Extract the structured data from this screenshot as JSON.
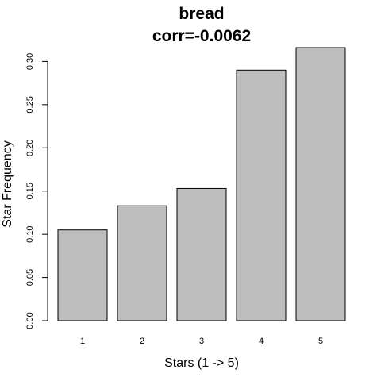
{
  "chart_data": {
    "type": "bar",
    "title": "bread",
    "subtitle": "corr=-0.0062",
    "xlabel": "Stars (1 -> 5)",
    "ylabel": "Star Frequency",
    "categories": [
      "1",
      "2",
      "3",
      "4",
      "5"
    ],
    "values": [
      0.105,
      0.133,
      0.153,
      0.29,
      0.316
    ],
    "ylim": [
      0,
      0.316
    ],
    "yticks": [
      0.0,
      0.05,
      0.1,
      0.15,
      0.2,
      0.25,
      0.3
    ],
    "ytick_labels": [
      "0.00",
      "0.05",
      "0.10",
      "0.15",
      "0.20",
      "0.25",
      "0.30"
    ],
    "bar_color": "#bebebe",
    "grid": false,
    "legend": "none"
  }
}
